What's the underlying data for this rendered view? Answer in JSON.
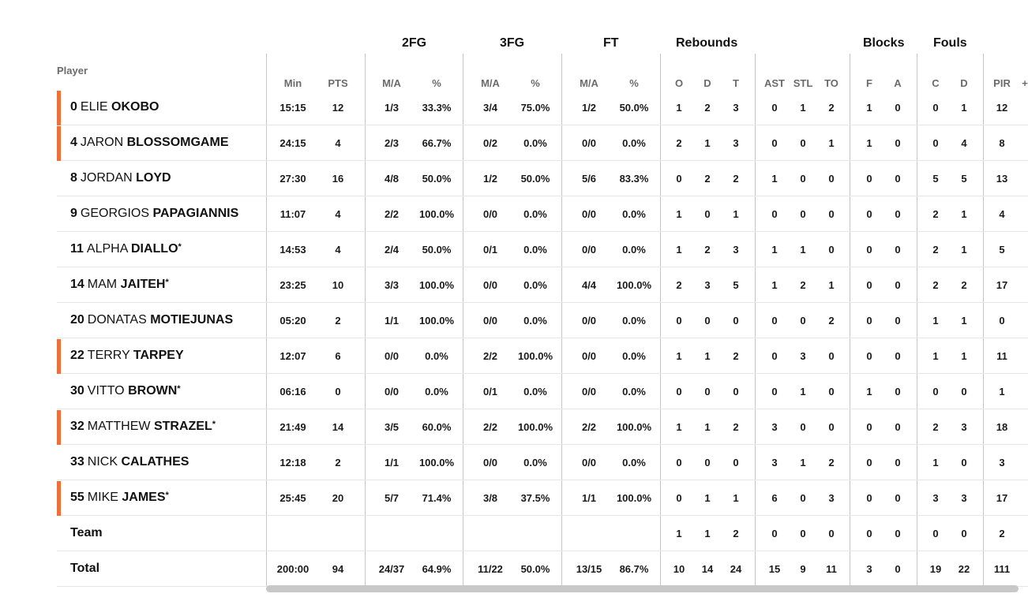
{
  "groups": {
    "fg2": "2FG",
    "fg3": "3FG",
    "ft": "FT",
    "rebounds": "Rebounds",
    "blocks": "Blocks",
    "fouls": "Fouls"
  },
  "headers": {
    "player": "Player",
    "min": "Min",
    "pts": "PTS",
    "fg2_ma": "M/A",
    "fg2_pct": "%",
    "fg3_ma": "M/A",
    "fg3_pct": "%",
    "ft_ma": "M/A",
    "ft_pct": "%",
    "reb_o": "O",
    "reb_d": "D",
    "reb_t": "T",
    "ast": "AST",
    "stl": "STL",
    "to": "TO",
    "blk_f": "F",
    "blk_a": "A",
    "foul_c": "C",
    "foul_d": "D",
    "pir": "PIR",
    "more": "+"
  },
  "starter_color": "#ee6f3a",
  "players": [
    {
      "num": "0",
      "first": "ELIE",
      "last": "OKOBO",
      "star": "",
      "starter": true,
      "min": "15:15",
      "pts": "12",
      "fg2ma": "1/3",
      "fg2p": "33.3%",
      "fg3ma": "3/4",
      "fg3p": "75.0%",
      "ftma": "1/2",
      "ftp": "50.0%",
      "o": "1",
      "d": "2",
      "t": "3",
      "ast": "0",
      "stl": "1",
      "to": "2",
      "bf": "1",
      "ba": "0",
      "fc": "0",
      "fd": "1",
      "pir": "12"
    },
    {
      "num": "4",
      "first": "JARON",
      "last": "BLOSSOMGAME",
      "star": "",
      "starter": true,
      "min": "24:15",
      "pts": "4",
      "fg2ma": "2/3",
      "fg2p": "66.7%",
      "fg3ma": "0/2",
      "fg3p": "0.0%",
      "ftma": "0/0",
      "ftp": "0.0%",
      "o": "2",
      "d": "1",
      "t": "3",
      "ast": "0",
      "stl": "0",
      "to": "1",
      "bf": "1",
      "ba": "0",
      "fc": "0",
      "fd": "4",
      "pir": "8"
    },
    {
      "num": "8",
      "first": "JORDAN",
      "last": "LOYD",
      "star": "",
      "starter": false,
      "min": "27:30",
      "pts": "16",
      "fg2ma": "4/8",
      "fg2p": "50.0%",
      "fg3ma": "1/2",
      "fg3p": "50.0%",
      "ftma": "5/6",
      "ftp": "83.3%",
      "o": "0",
      "d": "2",
      "t": "2",
      "ast": "1",
      "stl": "0",
      "to": "0",
      "bf": "0",
      "ba": "0",
      "fc": "5",
      "fd": "5",
      "pir": "13"
    },
    {
      "num": "9",
      "first": "GEORGIOS",
      "last": "PAPAGIANNIS",
      "star": "",
      "starter": false,
      "min": "11:07",
      "pts": "4",
      "fg2ma": "2/2",
      "fg2p": "100.0%",
      "fg3ma": "0/0",
      "fg3p": "0.0%",
      "ftma": "0/0",
      "ftp": "0.0%",
      "o": "1",
      "d": "0",
      "t": "1",
      "ast": "0",
      "stl": "0",
      "to": "0",
      "bf": "0",
      "ba": "0",
      "fc": "2",
      "fd": "1",
      "pir": "4"
    },
    {
      "num": "11",
      "first": "ALPHA",
      "last": "DIALLO",
      "star": "*",
      "starter": false,
      "min": "14:53",
      "pts": "4",
      "fg2ma": "2/4",
      "fg2p": "50.0%",
      "fg3ma": "0/1",
      "fg3p": "0.0%",
      "ftma": "0/0",
      "ftp": "0.0%",
      "o": "1",
      "d": "2",
      "t": "3",
      "ast": "1",
      "stl": "1",
      "to": "0",
      "bf": "0",
      "ba": "0",
      "fc": "2",
      "fd": "1",
      "pir": "5"
    },
    {
      "num": "14",
      "first": "MAM",
      "last": "JAITEH",
      "star": "*",
      "starter": false,
      "min": "23:25",
      "pts": "10",
      "fg2ma": "3/3",
      "fg2p": "100.0%",
      "fg3ma": "0/0",
      "fg3p": "0.0%",
      "ftma": "4/4",
      "ftp": "100.0%",
      "o": "2",
      "d": "3",
      "t": "5",
      "ast": "1",
      "stl": "2",
      "to": "1",
      "bf": "0",
      "ba": "0",
      "fc": "2",
      "fd": "2",
      "pir": "17"
    },
    {
      "num": "20",
      "first": "DONATAS",
      "last": "MOTIEJUNAS",
      "star": "",
      "starter": false,
      "min": "05:20",
      "pts": "2",
      "fg2ma": "1/1",
      "fg2p": "100.0%",
      "fg3ma": "0/0",
      "fg3p": "0.0%",
      "ftma": "0/0",
      "ftp": "0.0%",
      "o": "0",
      "d": "0",
      "t": "0",
      "ast": "0",
      "stl": "0",
      "to": "2",
      "bf": "0",
      "ba": "0",
      "fc": "1",
      "fd": "1",
      "pir": "0"
    },
    {
      "num": "22",
      "first": "TERRY",
      "last": "TARPEY",
      "star": "",
      "starter": true,
      "min": "12:07",
      "pts": "6",
      "fg2ma": "0/0",
      "fg2p": "0.0%",
      "fg3ma": "2/2",
      "fg3p": "100.0%",
      "ftma": "0/0",
      "ftp": "0.0%",
      "o": "1",
      "d": "1",
      "t": "2",
      "ast": "0",
      "stl": "3",
      "to": "0",
      "bf": "0",
      "ba": "0",
      "fc": "1",
      "fd": "1",
      "pir": "11"
    },
    {
      "num": "30",
      "first": "VITTO",
      "last": "BROWN",
      "star": "*",
      "starter": false,
      "min": "06:16",
      "pts": "0",
      "fg2ma": "0/0",
      "fg2p": "0.0%",
      "fg3ma": "0/1",
      "fg3p": "0.0%",
      "ftma": "0/0",
      "ftp": "0.0%",
      "o": "0",
      "d": "0",
      "t": "0",
      "ast": "0",
      "stl": "1",
      "to": "0",
      "bf": "1",
      "ba": "0",
      "fc": "0",
      "fd": "0",
      "pir": "1"
    },
    {
      "num": "32",
      "first": "MATTHEW",
      "last": "STRAZEL",
      "star": "*",
      "starter": true,
      "min": "21:49",
      "pts": "14",
      "fg2ma": "3/5",
      "fg2p": "60.0%",
      "fg3ma": "2/2",
      "fg3p": "100.0%",
      "ftma": "2/2",
      "ftp": "100.0%",
      "o": "1",
      "d": "1",
      "t": "2",
      "ast": "3",
      "stl": "0",
      "to": "0",
      "bf": "0",
      "ba": "0",
      "fc": "2",
      "fd": "3",
      "pir": "18"
    },
    {
      "num": "33",
      "first": "NICK",
      "last": "CALATHES",
      "star": "",
      "starter": false,
      "min": "12:18",
      "pts": "2",
      "fg2ma": "1/1",
      "fg2p": "100.0%",
      "fg3ma": "0/0",
      "fg3p": "0.0%",
      "ftma": "0/0",
      "ftp": "0.0%",
      "o": "0",
      "d": "0",
      "t": "0",
      "ast": "3",
      "stl": "1",
      "to": "2",
      "bf": "0",
      "ba": "0",
      "fc": "1",
      "fd": "0",
      "pir": "3"
    },
    {
      "num": "55",
      "first": "MIKE",
      "last": "JAMES",
      "star": "*",
      "starter": true,
      "min": "25:45",
      "pts": "20",
      "fg2ma": "5/7",
      "fg2p": "71.4%",
      "fg3ma": "3/8",
      "fg3p": "37.5%",
      "ftma": "1/1",
      "ftp": "100.0%",
      "o": "0",
      "d": "1",
      "t": "1",
      "ast": "6",
      "stl": "0",
      "to": "3",
      "bf": "0",
      "ba": "0",
      "fc": "3",
      "fd": "3",
      "pir": "17"
    }
  ],
  "team": {
    "label": "Team",
    "min": "",
    "pts": "",
    "fg2ma": "",
    "fg2p": "",
    "fg3ma": "",
    "fg3p": "",
    "ftma": "",
    "ftp": "",
    "o": "1",
    "d": "1",
    "t": "2",
    "ast": "0",
    "stl": "0",
    "to": "0",
    "bf": "0",
    "ba": "0",
    "fc": "0",
    "fd": "0",
    "pir": "2"
  },
  "total": {
    "label": "Total",
    "min": "200:00",
    "pts": "94",
    "fg2ma": "24/37",
    "fg2p": "64.9%",
    "fg3ma": "11/22",
    "fg3p": "50.0%",
    "ftma": "13/15",
    "ftp": "86.7%",
    "o": "10",
    "d": "14",
    "t": "24",
    "ast": "15",
    "stl": "9",
    "to": "11",
    "bf": "3",
    "ba": "0",
    "fc": "19",
    "fd": "22",
    "pir": "111"
  }
}
